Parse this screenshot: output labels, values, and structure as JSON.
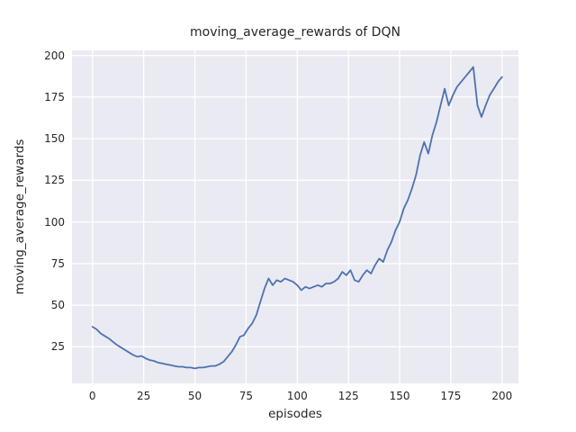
{
  "chart_data": {
    "type": "line",
    "title": "moving_average_rewards of DQN",
    "xlabel": "episodes",
    "ylabel": "moving_average_rewards",
    "xlim": [
      -10,
      208
    ],
    "ylim": [
      3,
      203
    ],
    "xticks": [
      0,
      25,
      50,
      75,
      100,
      125,
      150,
      175,
      200
    ],
    "yticks": [
      25,
      50,
      75,
      100,
      125,
      150,
      175,
      200
    ],
    "grid": true,
    "legend": false,
    "colors": {
      "line": "#4c72b0",
      "axes_background": "#eaeaf2",
      "grid": "#ffffff",
      "text": "#262626",
      "figure_background": "#ffffff"
    },
    "series": [
      {
        "name": "DQN moving average rewards",
        "x": [
          0,
          2,
          4,
          6,
          8,
          10,
          12,
          14,
          16,
          18,
          20,
          22,
          24,
          26,
          28,
          30,
          32,
          34,
          36,
          38,
          40,
          42,
          44,
          46,
          48,
          50,
          52,
          54,
          56,
          58,
          60,
          62,
          64,
          66,
          68,
          70,
          72,
          74,
          76,
          78,
          80,
          82,
          84,
          86,
          88,
          90,
          92,
          94,
          96,
          98,
          100,
          102,
          104,
          106,
          108,
          110,
          112,
          114,
          116,
          118,
          120,
          122,
          124,
          126,
          128,
          130,
          132,
          134,
          136,
          138,
          140,
          142,
          144,
          146,
          148,
          150,
          152,
          154,
          156,
          158,
          160,
          162,
          164,
          166,
          168,
          170,
          172,
          174,
          176,
          178,
          180,
          182,
          184,
          186,
          188,
          190,
          192,
          194,
          196,
          198,
          200
        ],
        "y": [
          37,
          35.5,
          33,
          31.5,
          30,
          28,
          26,
          24.5,
          23,
          21.5,
          20,
          19,
          19.5,
          18,
          17,
          16.5,
          15.5,
          15,
          14.5,
          14,
          13.5,
          13,
          13,
          12.5,
          12.5,
          12,
          12.5,
          12.5,
          13,
          13.5,
          13.5,
          14.5,
          16,
          19,
          22,
          26,
          31,
          32,
          36,
          39,
          44,
          52,
          60,
          66,
          62,
          65,
          64,
          66,
          65,
          64,
          62,
          59,
          61,
          60,
          61,
          62,
          61,
          63,
          63,
          64,
          66,
          70,
          68,
          71,
          65,
          64,
          68,
          71,
          69,
          74,
          78,
          76,
          83,
          88,
          95,
          100,
          108,
          113,
          120,
          128,
          140,
          148,
          141,
          152,
          160,
          170,
          180,
          170,
          176,
          181,
          184,
          187,
          190,
          193,
          170,
          163,
          170,
          176,
          180,
          184,
          187
        ]
      }
    ]
  }
}
